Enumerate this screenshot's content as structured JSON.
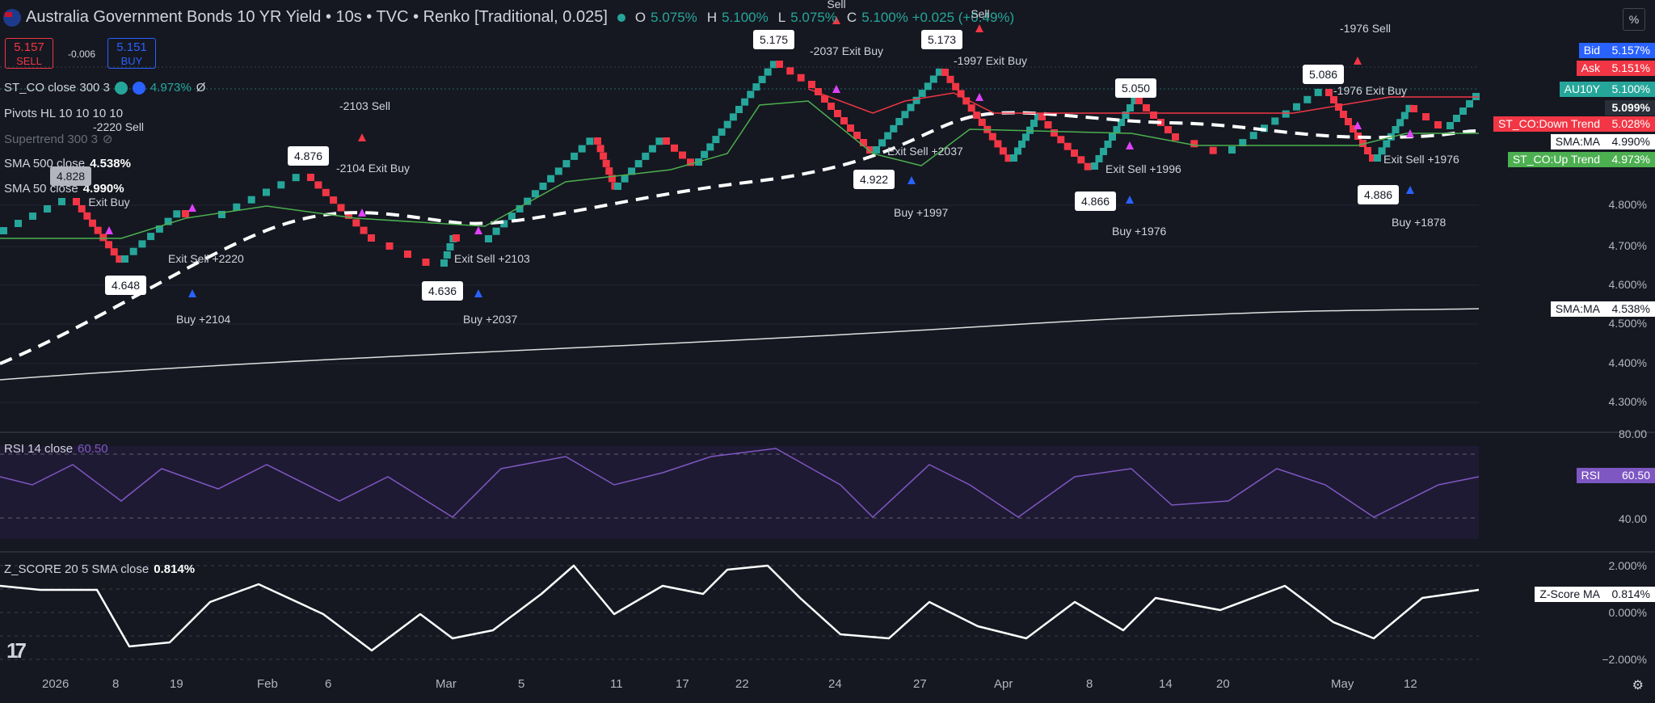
{
  "header": {
    "title": "Australia Government Bonds 10 YR Yield • 10s • TVC • Renko [Traditional, 0.025]",
    "ohlc": [
      {
        "k": "O",
        "v": "5.075%"
      },
      {
        "k": "H",
        "v": "5.100%"
      },
      {
        "k": "L",
        "v": "5.075%"
      },
      {
        "k": "C",
        "v": "5.100% +0.025 (+0.49%)"
      }
    ]
  },
  "trade": {
    "sell_price": "5.157",
    "sell_label": "SELL",
    "spread": "-0.006",
    "buy_price": "5.151",
    "buy_label": "BUY"
  },
  "legends": {
    "st_co": "ST_CO close 300 3",
    "st_co_value": "4.973%",
    "st_co_extra": "Ø",
    "pivots": "Pivots HL 10 10 10 10",
    "supertrend": "Supertrend 300 3",
    "sma500": "SMA 500 close",
    "sma500_value": "4.538%",
    "sma50": "SMA 50 close",
    "sma50_value": "4.990%",
    "rsi": "RSI 14 close",
    "rsi_value": "60.50",
    "zscore": "Z_SCORE 20 5 SMA close",
    "zscore_value": "0.814%"
  },
  "top_right": {
    "percent": "%"
  },
  "colors": {
    "up": "#26a69a",
    "down": "#f23645",
    "bg": "#151821",
    "rsi_line": "#7e57c2",
    "supertrend_up": "#4caf50",
    "supertrend_down": "#f23645",
    "signal_magenta": "#e040fb",
    "signal_blue": "#2962ff"
  },
  "axis_badges": [
    {
      "name": "Bid",
      "value": "5.157%",
      "color": "#2962ff"
    },
    {
      "name": "Ask",
      "value": "5.151%",
      "color": "#f23645"
    },
    {
      "name": "AU10Y",
      "value": "5.100%",
      "color": "#26a69a"
    },
    {
      "name": "",
      "value": "5.099%",
      "color": "#2a2e39"
    },
    {
      "name": "ST_CO:Down Trend",
      "value": "5.028%",
      "color": "#f23645"
    },
    {
      "name": "SMA:MA",
      "value": "4.990%",
      "color": "#ffffff"
    },
    {
      "name": "ST_CO:Up Trend",
      "value": "4.973%",
      "color": "#4caf50"
    },
    {
      "name": "SMA:MA",
      "value": "4.538%",
      "color": "#ffffff"
    },
    {
      "name": "RSI",
      "value": "60.50",
      "color": "#7e57c2"
    },
    {
      "name": "Z-Score MA",
      "value": "0.814%",
      "color": "#ffffff"
    }
  ],
  "chart_data": [
    {
      "type": "renko",
      "box_size": 0.025,
      "y_ticks": [
        "4.800%",
        "4.700%",
        "4.600%",
        "4.500%",
        "4.400%",
        "4.300%"
      ],
      "x_ticks": [
        "2026",
        "8",
        "19",
        "Feb",
        "6",
        "Mar",
        "5",
        "11",
        "17",
        "22",
        "24",
        "27",
        "Apr",
        "8",
        "14",
        "20",
        "May",
        "12"
      ],
      "pivots": [
        {
          "label": "4.828",
          "price": 4.828,
          "type": "high"
        },
        {
          "label": "4.648",
          "price": 4.648,
          "type": "low"
        },
        {
          "label": "4.876",
          "price": 4.876,
          "type": "high"
        },
        {
          "label": "4.636",
          "price": 4.636,
          "type": "low"
        },
        {
          "label": "5.175",
          "price": 5.175,
          "type": "high"
        },
        {
          "label": "4.922",
          "price": 4.922,
          "type": "low"
        },
        {
          "label": "5.173",
          "price": 5.173,
          "type": "high"
        },
        {
          "label": "5.050",
          "price": 5.05,
          "type": "high"
        },
        {
          "label": "4.866",
          "price": 4.866,
          "type": "low"
        },
        {
          "label": "5.086",
          "price": 5.086,
          "type": "high"
        },
        {
          "label": "4.886",
          "price": 4.886,
          "type": "low"
        }
      ],
      "signals": [
        {
          "text": "-2220 Sell"
        },
        {
          "text": "Exit Buy"
        },
        {
          "text": "Exit Sell +2220"
        },
        {
          "text": "Buy +2104"
        },
        {
          "text": "-2103 Sell"
        },
        {
          "text": "-2104 Exit Buy"
        },
        {
          "text": "Exit Sell +2103"
        },
        {
          "text": "Buy +2037"
        },
        {
          "text": "Sell"
        },
        {
          "text": "-2037 Exit Buy"
        },
        {
          "text": "Exit Sell +2037"
        },
        {
          "text": "Buy +1997"
        },
        {
          "text": "Sell"
        },
        {
          "text": "-1997 Exit Buy"
        },
        {
          "text": "Exit Sell +1996"
        },
        {
          "text": "Buy +1976"
        },
        {
          "text": "-1976 Sell"
        },
        {
          "text": "-1976 Exit Buy"
        },
        {
          "text": "Exit Sell +1976"
        },
        {
          "text": "Buy +1878"
        }
      ],
      "series": [
        {
          "name": "SMA 500 close",
          "last": 4.538
        },
        {
          "name": "SMA 50 close",
          "last": 4.99
        },
        {
          "name": "ST_CO close 300 3",
          "last": 4.973
        }
      ],
      "last_close": 5.1
    },
    {
      "type": "line",
      "name": "RSI 14 close",
      "y_ticks": [
        "80.00",
        "40.00"
      ],
      "ylim": [
        30,
        85
      ],
      "last": 60.5
    },
    {
      "type": "line",
      "name": "Z_SCORE 20 5 SMA close",
      "y_ticks": [
        "2.000%",
        "0.000%",
        "−2.000%"
      ],
      "ylim": [
        -2.4,
        2.4
      ],
      "last": 0.814
    }
  ]
}
